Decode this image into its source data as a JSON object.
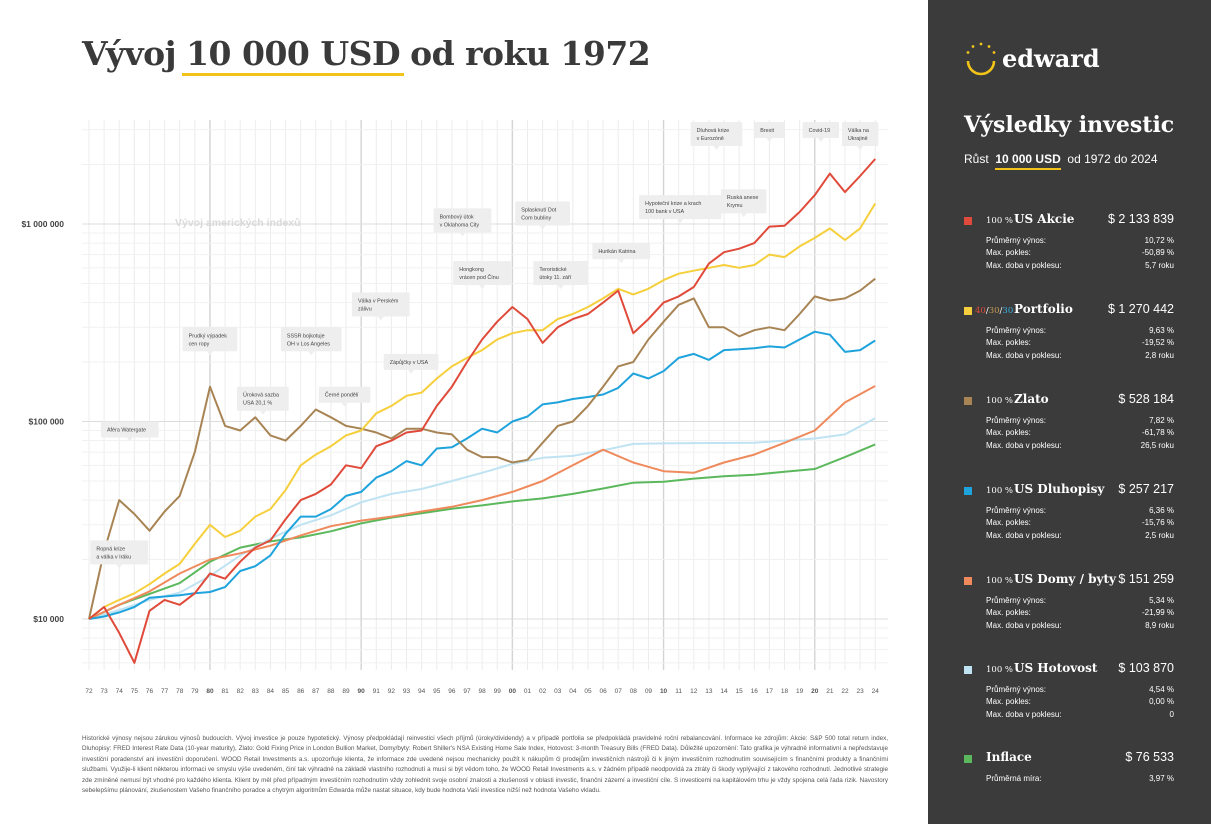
{
  "title": {
    "prefix": "Vývoj",
    "highlight": "10 000 USD",
    "suffix": "od roku 1972"
  },
  "brand": {
    "name": "edward",
    "icon": "sun-arc-logo"
  },
  "sidebar": {
    "title": "Výsledky investic",
    "subtitle_prefix": "Růst",
    "subtitle_amount": "10 000 USD",
    "subtitle_suffix": "od 1972 do 2024",
    "assets": [
      {
        "pct": "100 %",
        "name": "US Akcie",
        "value": "$ 2 133 839",
        "color": "#e04a3a",
        "stats": [
          {
            "label": "Průměrný výnos:",
            "value": "10,72 %"
          },
          {
            "label": "Max. pokles:",
            "value": "-50,89 %"
          },
          {
            "label": "Max. doba v poklesu:",
            "value": "5,7 roku"
          }
        ]
      },
      {
        "pct_parts": [
          "40",
          "30",
          "30"
        ],
        "pct_colors": [
          "#e04a3a",
          "#c49a52",
          "#3ab0e0"
        ],
        "name": "Portfolio",
        "value": "$ 1 270 442",
        "color": "#f6cf3c",
        "stats": [
          {
            "label": "Průměrný výnos:",
            "value": "9,63 %"
          },
          {
            "label": "Max. pokles:",
            "value": "-19,52 %"
          },
          {
            "label": "Max. doba v poklesu:",
            "value": "2,8 roku"
          }
        ]
      },
      {
        "pct": "100 %",
        "name": "Zlato",
        "value": "$ 528 184",
        "color": "#a88454",
        "stats": [
          {
            "label": "Průměrný výnos:",
            "value": "7,82 %"
          },
          {
            "label": "Max. pokles:",
            "value": "-61,78 %"
          },
          {
            "label": "Max. doba v poklesu:",
            "value": "26,5 roku"
          }
        ]
      },
      {
        "pct": "100 %",
        "name": "US Dluhopisy",
        "value": "$ 257 217",
        "color": "#1fa3dc",
        "stats": [
          {
            "label": "Průměrný výnos:",
            "value": "6,36 %"
          },
          {
            "label": "Max. pokles:",
            "value": "-15,76 %"
          },
          {
            "label": "Max. doba v poklesu:",
            "value": "2,5 roku"
          }
        ]
      },
      {
        "pct": "100 %",
        "name": "US Domy / byty",
        "value": "$ 151 259",
        "color": "#ef8a5c",
        "stats": [
          {
            "label": "Průměrný výnos:",
            "value": "5,34 %"
          },
          {
            "label": "Max. pokles:",
            "value": "-21,99 %"
          },
          {
            "label": "Max. doba v poklesu:",
            "value": "8,9 roku"
          }
        ]
      },
      {
        "pct": "100 %",
        "name": "US Hotovost",
        "value": "$ 103 870",
        "color": "#bfe3f2",
        "stats": [
          {
            "label": "Průměrný výnos:",
            "value": "4,54 %"
          },
          {
            "label": "Max. pokles:",
            "value": "0,00 %"
          },
          {
            "label": "Max. doba v poklesu:",
            "value": "0"
          }
        ]
      },
      {
        "pct": "",
        "name": "Inflace",
        "value": "$ 76 533",
        "color": "#5cb85c",
        "stats": [
          {
            "label": "Průměrná míra:",
            "value": "3,97 %"
          }
        ]
      }
    ]
  },
  "disclaimer": "Historické výnosy nejsou zárukou výnosů budoucích. Vývoj investice je pouze hypotetický. Výnosy předpokládají reinvestici všech příjmů (úroky/dividendy) a v případě portfolia se předpokládá pravidelné roční rebalancování. Informace ke zdrojům: Akcie: S&P 500 total return index, Dluhopisy: FRED Interest Rate Data (10-year maturity), Zlato: Gold Fixing Price in London Bullion Market, Domy/byty: Robert Shiller's NSA Existing Home Sale Index, Hotovost: 3-month Treasury Bills (FRED Data). Důležité upozornění: Tato grafika je výhradně informativní a nepředstavuje investiční poradenství ani investiční doporučení. WOOD Retail Investments a.s. upozorňuje klienta, že informace zde uvedené nejsou mechanicky použít k nákupům či prodejům investičních nástrojů či k jiným investičním rozhodnutím souvisejícím s finančními produkty a finančními službami. Využije-li klient některou informaci ve smyslu výše uvedeném, činí tak výhradně na základě vlastního rozhodnutí a musí si být vědom toho, že WOOD Retail Investments a.s. v žádném případě neodpovídá za ztráty či škody vyplývající z takového rozhodnutí. Jednotlivé strategie zde zmíněné nemusí být vhodné pro každého klienta. Klient by měl před případným investičním rozhodnutím vždy zohlednit svoje osobní znalosti a zkušenosti v oblasti investic, finanční zázemí a investiční cíle. S investicemi na kapitálovém trhu je vždy spojena celá řada rizik. Navostory sebelepšímu plánování, zkušenostem Vašeho finančního poradce a chytrým algoritmům Edwarda může nastat situace, kdy bude hodnota Vaší investice nižší než hodnota Vašeho vkladu.",
  "chart_data": {
    "type": "line",
    "yscale": "log",
    "ylim": [
      5000,
      3500000
    ],
    "yticks": [
      {
        "value": 10000,
        "label": "$10 000"
      },
      {
        "value": 100000,
        "label": "$100 000"
      },
      {
        "value": 1000000,
        "label": "$1 000 000"
      }
    ],
    "xlim": [
      1972,
      2024.6
    ],
    "xtick_labels": [
      "72",
      "73",
      "74",
      "75",
      "76",
      "77",
      "78",
      "79",
      "80",
      "81",
      "82",
      "83",
      "84",
      "85",
      "86",
      "87",
      "88",
      "89",
      "90",
      "91",
      "92",
      "93",
      "94",
      "95",
      "96",
      "97",
      "98",
      "99",
      "00",
      "01",
      "02",
      "03",
      "04",
      "05",
      "06",
      "07",
      "08",
      "09",
      "10",
      "11",
      "12",
      "13",
      "14",
      "15",
      "16",
      "17",
      "18",
      "19",
      "20",
      "21",
      "22",
      "23",
      "24"
    ],
    "watermark": "Vývoj amerických indexů",
    "grid": true,
    "series": [
      {
        "name": "US Akcie",
        "color": "#e04a3a",
        "x": [
          1972,
          1973,
          1974,
          1975,
          1976,
          1977,
          1978,
          1979,
          1980,
          1981,
          1982,
          1983,
          1984,
          1985,
          1986,
          1987,
          1988,
          1989,
          1990,
          1991,
          1992,
          1993,
          1994,
          1995,
          1996,
          1997,
          1998,
          1999,
          2000,
          2001,
          2002,
          2003,
          2004,
          2005,
          2006,
          2007,
          2008,
          2009,
          2010,
          2011,
          2012,
          2013,
          2014,
          2015,
          2016,
          2017,
          2018,
          2019,
          2020,
          2021,
          2022,
          2023,
          2024
        ],
        "y": [
          10000,
          11500,
          8500,
          6000,
          11000,
          12500,
          11800,
          13500,
          17000,
          16000,
          19500,
          23000,
          25000,
          32000,
          40000,
          43000,
          48000,
          60000,
          58000,
          75000,
          80000,
          88000,
          90000,
          120000,
          150000,
          200000,
          260000,
          320000,
          380000,
          330000,
          250000,
          300000,
          330000,
          350000,
          400000,
          460000,
          280000,
          330000,
          400000,
          430000,
          480000,
          630000,
          720000,
          750000,
          800000,
          970000,
          980000,
          1150000,
          1400000,
          1800000,
          1450000,
          1750000,
          2133839
        ]
      },
      {
        "name": "Portfolio",
        "color": "#f6cf3c",
        "x": [
          1972,
          1973,
          1974,
          1975,
          1976,
          1977,
          1978,
          1979,
          1980,
          1981,
          1982,
          1983,
          1984,
          1985,
          1986,
          1987,
          1988,
          1989,
          1990,
          1991,
          1992,
          1993,
          1994,
          1995,
          1996,
          1997,
          1998,
          1999,
          2000,
          2001,
          2002,
          2003,
          2004,
          2005,
          2006,
          2007,
          2008,
          2009,
          2010,
          2011,
          2012,
          2013,
          2014,
          2015,
          2016,
          2017,
          2018,
          2019,
          2020,
          2021,
          2022,
          2023,
          2024
        ],
        "y": [
          10000,
          11500,
          12500,
          13500,
          15000,
          17000,
          19000,
          24000,
          30000,
          26000,
          28000,
          33000,
          36000,
          45000,
          60000,
          68000,
          75000,
          85000,
          90000,
          110000,
          120000,
          135000,
          140000,
          165000,
          190000,
          210000,
          230000,
          260000,
          280000,
          290000,
          290000,
          330000,
          350000,
          380000,
          420000,
          470000,
          440000,
          470000,
          520000,
          560000,
          580000,
          600000,
          620000,
          600000,
          620000,
          700000,
          680000,
          770000,
          850000,
          950000,
          830000,
          950000,
          1270442
        ]
      },
      {
        "name": "Zlato",
        "color": "#a88454",
        "x": [
          1972,
          1973,
          1974,
          1975,
          1976,
          1977,
          1978,
          1979,
          1980,
          1981,
          1982,
          1983,
          1984,
          1985,
          1986,
          1987,
          1988,
          1989,
          1990,
          1991,
          1992,
          1993,
          1994,
          1995,
          1996,
          1997,
          1998,
          1999,
          2000,
          2001,
          2002,
          2003,
          2004,
          2005,
          2006,
          2007,
          2008,
          2009,
          2010,
          2011,
          2012,
          2013,
          2014,
          2015,
          2016,
          2017,
          2018,
          2019,
          2020,
          2021,
          2022,
          2023,
          2024
        ],
        "y": [
          10000,
          22000,
          40000,
          34000,
          28000,
          35000,
          42000,
          70000,
          150000,
          95000,
          90000,
          105000,
          85000,
          80000,
          95000,
          115000,
          105000,
          95000,
          92000,
          88000,
          82000,
          92000,
          92000,
          88000,
          86000,
          72000,
          66000,
          66000,
          62000,
          64000,
          78000,
          95000,
          100000,
          120000,
          150000,
          190000,
          200000,
          260000,
          320000,
          390000,
          420000,
          300000,
          300000,
          270000,
          290000,
          300000,
          290000,
          350000,
          430000,
          410000,
          420000,
          460000,
          528184
        ]
      },
      {
        "name": "US Dluhopisy",
        "color": "#1fa3dc",
        "x": [
          1972,
          1973,
          1974,
          1975,
          1976,
          1977,
          1978,
          1979,
          1980,
          1981,
          1982,
          1983,
          1984,
          1985,
          1986,
          1987,
          1988,
          1989,
          1990,
          1991,
          1992,
          1993,
          1994,
          1995,
          1996,
          1997,
          1998,
          1999,
          2000,
          2001,
          2002,
          2003,
          2004,
          2005,
          2006,
          2007,
          2008,
          2009,
          2010,
          2011,
          2012,
          2013,
          2014,
          2015,
          2016,
          2017,
          2018,
          2019,
          2020,
          2021,
          2022,
          2023,
          2024
        ],
        "y": [
          10000,
          10300,
          10800,
          11500,
          12800,
          13000,
          13200,
          13500,
          13700,
          14500,
          17500,
          18500,
          21000,
          27000,
          33000,
          33000,
          36000,
          42000,
          44000,
          52000,
          56000,
          63000,
          60000,
          73000,
          74000,
          82000,
          92000,
          88000,
          100000,
          106000,
          122000,
          125000,
          130000,
          133000,
          137000,
          148000,
          175000,
          165000,
          180000,
          210000,
          220000,
          205000,
          230000,
          232000,
          235000,
          240000,
          237000,
          260000,
          285000,
          275000,
          225000,
          230000,
          257217
        ]
      },
      {
        "name": "US Domy / byty",
        "color": "#ef8a5c",
        "x": [
          1972,
          1974,
          1976,
          1978,
          1980,
          1982,
          1984,
          1986,
          1988,
          1990,
          1992,
          1994,
          1996,
          1998,
          2000,
          2002,
          2004,
          2006,
          2008,
          2010,
          2012,
          2014,
          2016,
          2018,
          2020,
          2022,
          2024
        ],
        "y": [
          10000,
          11800,
          13800,
          17000,
          20000,
          21500,
          23500,
          26500,
          29500,
          31500,
          33000,
          35000,
          37000,
          40000,
          44000,
          50000,
          60000,
          72000,
          62000,
          56000,
          55000,
          62000,
          68000,
          78000,
          90000,
          125000,
          151259
        ]
      },
      {
        "name": "US Hotovost",
        "color": "#bfe3f2",
        "x": [
          1972,
          1974,
          1976,
          1978,
          1980,
          1982,
          1984,
          1986,
          1988,
          1990,
          1992,
          1994,
          1996,
          1998,
          2000,
          2002,
          2004,
          2006,
          2008,
          2010,
          2012,
          2014,
          2016,
          2018,
          2020,
          2022,
          2024
        ],
        "y": [
          10000,
          11100,
          12500,
          13600,
          16500,
          21000,
          25500,
          30000,
          33500,
          39000,
          43000,
          45500,
          50000,
          55000,
          61000,
          65500,
          67000,
          71500,
          77000,
          77500,
          77700,
          77800,
          78000,
          80000,
          82000,
          86000,
          103870
        ]
      },
      {
        "name": "Inflace",
        "color": "#5cb85c",
        "x": [
          1972,
          1974,
          1976,
          1978,
          1980,
          1982,
          1984,
          1986,
          1988,
          1990,
          1992,
          1994,
          1996,
          1998,
          2000,
          2002,
          2004,
          2006,
          2008,
          2010,
          2012,
          2014,
          2016,
          2018,
          2020,
          2022,
          2024
        ],
        "y": [
          10000,
          11800,
          13400,
          15200,
          19500,
          23000,
          24700,
          25900,
          27800,
          30500,
          32600,
          34300,
          36200,
          37600,
          39400,
          40800,
          43000,
          45800,
          49000,
          49500,
          51400,
          52800,
          53800,
          55700,
          57500,
          66000,
          76533
        ]
      }
    ],
    "annotations": [
      {
        "text": "Ropná krize\na válka v Iráku",
        "x": 1974.0,
        "y": 25000
      },
      {
        "text": "Aféra Watergate",
        "x": 1974.7,
        "y": 100000
      },
      {
        "text": "Prudký výpadek\ncen ropy",
        "x": 1980.0,
        "y": 300000
      },
      {
        "text": "Úroková sazba\nUSA 20,1 %",
        "x": 1983.5,
        "y": 150000
      },
      {
        "text": "SSSR bojkotuje\nOH v Los Angeles",
        "x": 1986.7,
        "y": 300000
      },
      {
        "text": "Černé pondělí",
        "x": 1988.9,
        "y": 150000
      },
      {
        "text": "Válka v Perském\nzálivu",
        "x": 1991.3,
        "y": 450000
      },
      {
        "text": "Zápůjčky v USA",
        "x": 1993.3,
        "y": 220000
      },
      {
        "text": "Bombový útok\nv Oklahoma City",
        "x": 1996.7,
        "y": 1200000
      },
      {
        "text": "Hongkong\nvrácen pod Čínu",
        "x": 1998.0,
        "y": 650000
      },
      {
        "text": "Splasknutí Dot\nCom bubliny",
        "x": 2002.0,
        "y": 1300000
      },
      {
        "text": "Teroristické\nútoky 11. září",
        "x": 2003.2,
        "y": 650000
      },
      {
        "text": "Hurikán Katrina",
        "x": 2007.2,
        "y": 800000
      },
      {
        "text": "Hypoteční krize a krach\n100 bank v USA",
        "x": 2011.1,
        "y": 1400000
      },
      {
        "text": "Dluhová krize\nv Eurozóně",
        "x": 2013.5,
        "y": 3300000
      },
      {
        "text": "Ruská anexe\nKrymu",
        "x": 2015.3,
        "y": 1500000
      },
      {
        "text": "Brexit",
        "x": 2017.0,
        "y": 3500000
      },
      {
        "text": "Covid-19",
        "x": 2020.4,
        "y": 3600000
      },
      {
        "text": "Válka na\nUkrajině",
        "x": 2023.0,
        "y": 9500000
      }
    ]
  }
}
